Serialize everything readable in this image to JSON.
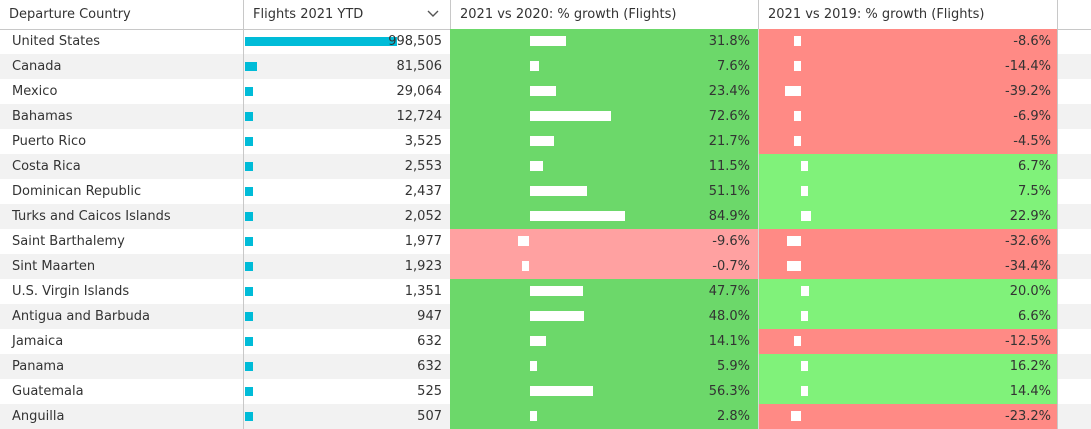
{
  "columns": {
    "country": "Departure Country",
    "flights": "Flights 2021 YTD",
    "growth_2020": "2021 vs 2020: % growth (Flights)",
    "growth_2019": "2021 vs 2019: % growth (Flights)"
  },
  "sort_icon": "chevron-down-icon",
  "colors": {
    "flights_bar": "#00bcd8",
    "positive_2020": "#6cd86a",
    "positive_2019": "#80f27a",
    "negative_2020": "#ffa1a1",
    "negative_2019": "#ff8a85"
  },
  "rows": [
    {
      "country": "United States",
      "flights": 998505,
      "flights_text": "998,505",
      "g2020": 31.8,
      "g2020_text": "31.8%",
      "g2019": -8.6,
      "g2019_text": "-8.6%"
    },
    {
      "country": "Canada",
      "flights": 81506,
      "flights_text": "81,506",
      "g2020": 7.6,
      "g2020_text": "7.6%",
      "g2019": -14.4,
      "g2019_text": "-14.4%"
    },
    {
      "country": "Mexico",
      "flights": 29064,
      "flights_text": "29,064",
      "g2020": 23.4,
      "g2020_text": "23.4%",
      "g2019": -39.2,
      "g2019_text": "-39.2%"
    },
    {
      "country": "Bahamas",
      "flights": 12724,
      "flights_text": "12,724",
      "g2020": 72.6,
      "g2020_text": "72.6%",
      "g2019": -6.9,
      "g2019_text": "-6.9%"
    },
    {
      "country": "Puerto Rico",
      "flights": 3525,
      "flights_text": "3,525",
      "g2020": 21.7,
      "g2020_text": "21.7%",
      "g2019": -4.5,
      "g2019_text": "-4.5%"
    },
    {
      "country": "Costa Rica",
      "flights": 2553,
      "flights_text": "2,553",
      "g2020": 11.5,
      "g2020_text": "11.5%",
      "g2019": 6.7,
      "g2019_text": "6.7%"
    },
    {
      "country": "Dominican Republic",
      "flights": 2437,
      "flights_text": "2,437",
      "g2020": 51.1,
      "g2020_text": "51.1%",
      "g2019": 7.5,
      "g2019_text": "7.5%"
    },
    {
      "country": "Turks and Caicos Islands",
      "flights": 2052,
      "flights_text": "2,052",
      "g2020": 84.9,
      "g2020_text": "84.9%",
      "g2019": 22.9,
      "g2019_text": "22.9%"
    },
    {
      "country": "Saint Barthalemy",
      "flights": 1977,
      "flights_text": "1,977",
      "g2020": -9.6,
      "g2020_text": "-9.6%",
      "g2019": -32.6,
      "g2019_text": "-32.6%"
    },
    {
      "country": "Sint Maarten",
      "flights": 1923,
      "flights_text": "1,923",
      "g2020": -0.7,
      "g2020_text": "-0.7%",
      "g2019": -34.4,
      "g2019_text": "-34.4%"
    },
    {
      "country": "U.S. Virgin Islands",
      "flights": 1351,
      "flights_text": "1,351",
      "g2020": 47.7,
      "g2020_text": "47.7%",
      "g2019": 20.0,
      "g2019_text": "20.0%"
    },
    {
      "country": "Antigua and Barbuda",
      "flights": 947,
      "flights_text": "947",
      "g2020": 48.0,
      "g2020_text": "48.0%",
      "g2019": 6.6,
      "g2019_text": "6.6%"
    },
    {
      "country": "Jamaica",
      "flights": 632,
      "flights_text": "632",
      "g2020": 14.1,
      "g2020_text": "14.1%",
      "g2019": -12.5,
      "g2019_text": "-12.5%"
    },
    {
      "country": "Panama",
      "flights": 632,
      "flights_text": "632",
      "g2020": 5.9,
      "g2020_text": "5.9%",
      "g2019": 16.2,
      "g2019_text": "16.2%"
    },
    {
      "country": "Guatemala",
      "flights": 525,
      "flights_text": "525",
      "g2020": 56.3,
      "g2020_text": "56.3%",
      "g2019": 14.4,
      "g2019_text": "14.4%"
    },
    {
      "country": "Anguilla",
      "flights": 507,
      "flights_text": "507",
      "g2020": 2.8,
      "g2020_text": "2.8%",
      "g2019": -23.2,
      "g2019_text": "-23.2%"
    }
  ]
}
